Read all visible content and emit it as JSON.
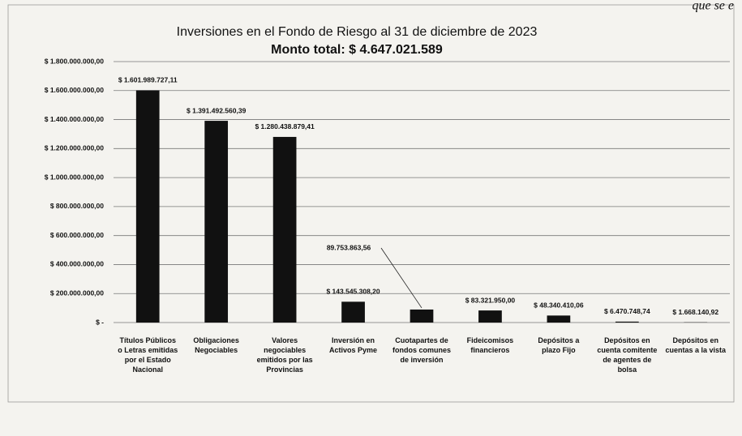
{
  "fragment": "que se e",
  "chart_data": {
    "type": "bar",
    "title": "Inversiones en el Fondo de Riesgo al 31 de diciembre de 2023",
    "subtitle": "Monto total: $ 4.647.021.589",
    "categories": [
      "Títulos Públicos o Letras emitidas por el Estado Nacional",
      "Obligaciones Negociables",
      "Valores negociables emitidos por las Provincias",
      "Inversión en Activos Pyme",
      "Cuotapartes de fondos comunes de inversión",
      "Fideicomisos financieros",
      "Depósitos a plazo Fijo",
      "Depósitos en cuenta comitente de agentes de bolsa",
      "Depósitos en cuentas a la vista"
    ],
    "values": [
      1601989727.11,
      1391492560.39,
      1280438879.41,
      143545308.2,
      89753863.56,
      83321950.0,
      48340410.06,
      6470748.74,
      1668140.92
    ],
    "value_labels": [
      "$ 1.601.989.727,11",
      "$ 1.391.492.560,39",
      "$ 1.280.438.879,41",
      "$ 143.545.308,20",
      "89.753.863,56",
      "$ 83.321.950,00",
      "$ 48.340.410,06",
      "$ 6.470.748,74",
      "$ 1.668.140,92"
    ],
    "color": "#111111",
    "ylim": [
      0,
      1800000000
    ],
    "yticks": [
      {
        "value": 0,
        "label": "$ -"
      },
      {
        "value": 200000000,
        "label": "$ 200.000.000,00"
      },
      {
        "value": 400000000,
        "label": "$ 400.000.000,00"
      },
      {
        "value": 600000000,
        "label": "$ 600.000.000,00"
      },
      {
        "value": 800000000,
        "label": "$ 800.000.000,00"
      },
      {
        "value": 1000000000,
        "label": "$ 1.000.000.000,00"
      },
      {
        "value": 1200000000,
        "label": "$ 1.200.000.000,00"
      },
      {
        "value": 1400000000,
        "label": "$ 1.400.000.000,00"
      },
      {
        "value": 1600000000,
        "label": "$ 1.600.000.000,00"
      },
      {
        "value": 1800000000,
        "label": "$ 1.800.000.000,00"
      }
    ],
    "grid": true
  }
}
